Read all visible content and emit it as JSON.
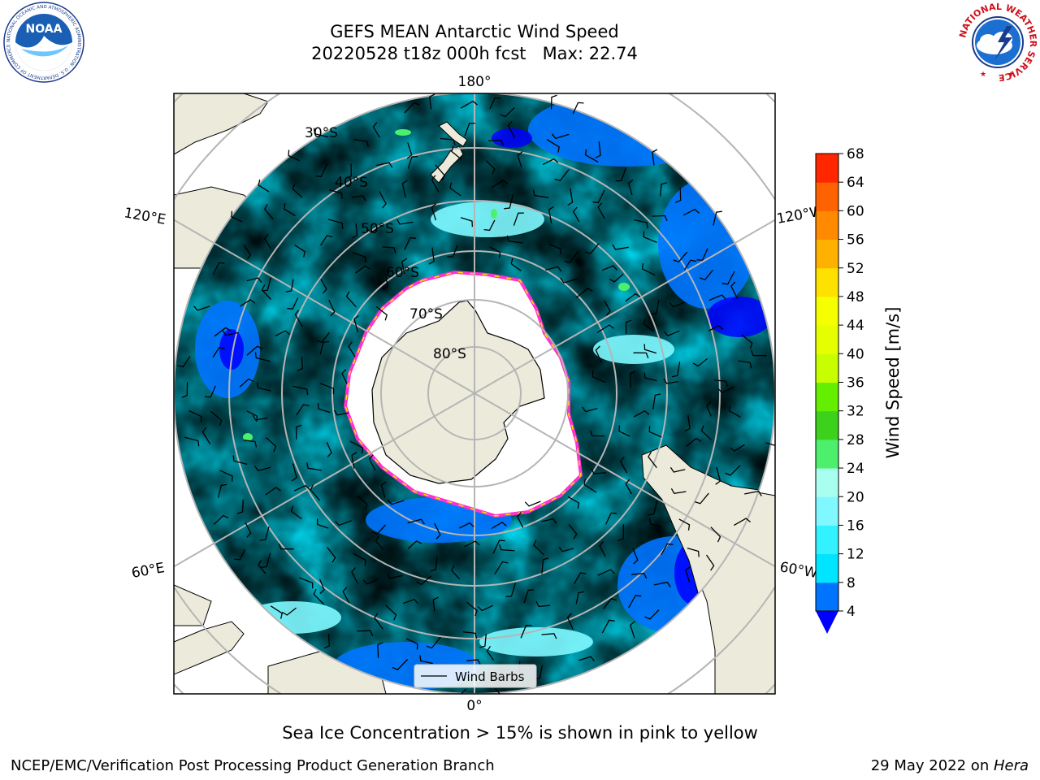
{
  "title": {
    "line1": "GEFS MEAN Antarctic Wind Speed",
    "line2": "20220528 t18z 000h fcst   Max: 22.74"
  },
  "logos": {
    "noaa_text": "NOAA",
    "noaa_ring_text": "NATIONAL OCEANIC AND ATMOSPHERIC ADMINISTRATION · U.S. DEPARTMENT OF COMMERCE",
    "nws_ring_text": "NATIONAL WEATHER SERVICE"
  },
  "map": {
    "projection": "south-polar-stereographic",
    "longitude_labels": [
      {
        "label": "180°",
        "pos": "top"
      },
      {
        "label": "120°E",
        "pos": "upper-left"
      },
      {
        "label": "120°W",
        "pos": "upper-right"
      },
      {
        "label": "60°E",
        "pos": "lower-left"
      },
      {
        "label": "60°W",
        "pos": "lower-right"
      },
      {
        "label": "0°",
        "pos": "bottom"
      }
    ],
    "latitude_labels": [
      "30°S",
      "40°S",
      "50°S",
      "60°S",
      "70°S",
      "80°S"
    ],
    "legend": {
      "label": "Wind Barbs"
    }
  },
  "colorbar": {
    "label": "Wind Speed [m/s]",
    "ticks": [
      4,
      8,
      12,
      16,
      20,
      24,
      28,
      32,
      36,
      40,
      44,
      48,
      52,
      56,
      60,
      64,
      68
    ],
    "colors": [
      "#0074ff",
      "#00e5ff",
      "#33f2ff",
      "#80f8ff",
      "#a8fff0",
      "#4cf06c",
      "#3cd21c",
      "#64ee00",
      "#c8ff00",
      "#e6ff00",
      "#f6ff00",
      "#ffe100",
      "#ffb100",
      "#ff8a00",
      "#ff6200",
      "#ff2600"
    ],
    "under_color": "#0000ff"
  },
  "chart_data": {
    "type": "heatmap",
    "title": "GEFS MEAN Antarctic Wind Speed",
    "subtitle": "20220528 t18z 000h fcst   Max: 22.74",
    "variable": "Wind Speed [m/s]",
    "max_value": 22.74,
    "colorbar_range": [
      4,
      68
    ],
    "colorbar_ticks": [
      4,
      8,
      12,
      16,
      20,
      24,
      28,
      32,
      36,
      40,
      44,
      48,
      52,
      56,
      60,
      64,
      68
    ],
    "overlay": "Wind Barbs",
    "note": "Sea Ice Concentration > 15% is shown in pink to yellow"
  },
  "caption": "Sea Ice Concentration > 15% is shown in pink to yellow",
  "footer": {
    "left": "NCEP/EMC/Verification Post Processing Product Generation Branch",
    "right_date": "29 May 2022 on ",
    "right_host": "Hera"
  }
}
